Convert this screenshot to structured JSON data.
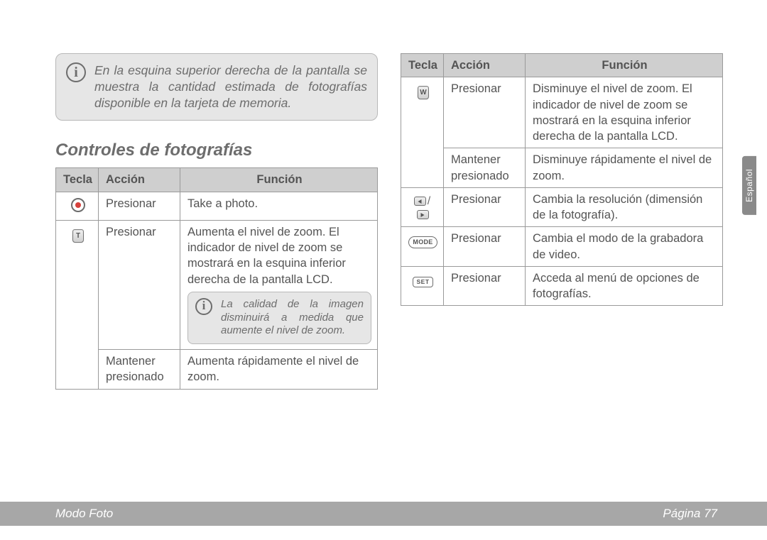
{
  "info_top": "En la esquina superior derecha de la pantalla se muestra la cantidad estima­da de fotografías disponible en la tar­jeta de memoria.",
  "section_heading": "Controles de fotografías",
  "table_headers": {
    "tecla": "Tecla",
    "accion": "Acción",
    "funcion": "Función"
  },
  "table_left": {
    "rows": [
      {
        "accion": "Presionar",
        "funcion": "Take a photo."
      },
      {
        "accion": "Presionar",
        "funcion": "Aumenta el nivel de zoom. El indicador de nivel de zoom se mostrará en la esquina inferior derecha de la pantalla LCD.",
        "note": "La calidad de la imagen disminuirá a medida que aumente el nivel de zoom."
      },
      {
        "accion": "Mantener presionado",
        "funcion": "Aumenta rápidamente el nivel de zoom."
      }
    ]
  },
  "table_right": {
    "rows": [
      {
        "accion": "Presionar",
        "funcion": "Disminuye el nivel de zoom. El indicador de nivel de zoom se mostrará en la esquina inferior derecha de la pantalla LCD."
      },
      {
        "accion": "Mantener presionado",
        "funcion": "Disminuye rápidamente el nivel de zoom."
      },
      {
        "accion": "Presionar",
        "funcion": "Cambia la resolución (dimensión de la fotografía)."
      },
      {
        "accion": "Presionar",
        "funcion": "Cambia el modo de la grabadora de video."
      },
      {
        "accion": "Presionar",
        "funcion": "Acceda al menú de opciones de fotografías."
      }
    ]
  },
  "key_labels": {
    "t": "T",
    "w": "W",
    "mode": "MODE",
    "set": "SET"
  },
  "lang_tab": "Español",
  "footer": {
    "left": "Modo Foto",
    "right": "Página 77"
  },
  "colors": {
    "text": "#6d6d6d",
    "table_text": "#545454",
    "border": "#9a9a9a",
    "header_bg": "#cfcfcf",
    "info_bg": "#e6e6e6",
    "footer_bg": "#a7a7a7",
    "shutter_dot": "#d6413c",
    "white": "#ffffff"
  }
}
